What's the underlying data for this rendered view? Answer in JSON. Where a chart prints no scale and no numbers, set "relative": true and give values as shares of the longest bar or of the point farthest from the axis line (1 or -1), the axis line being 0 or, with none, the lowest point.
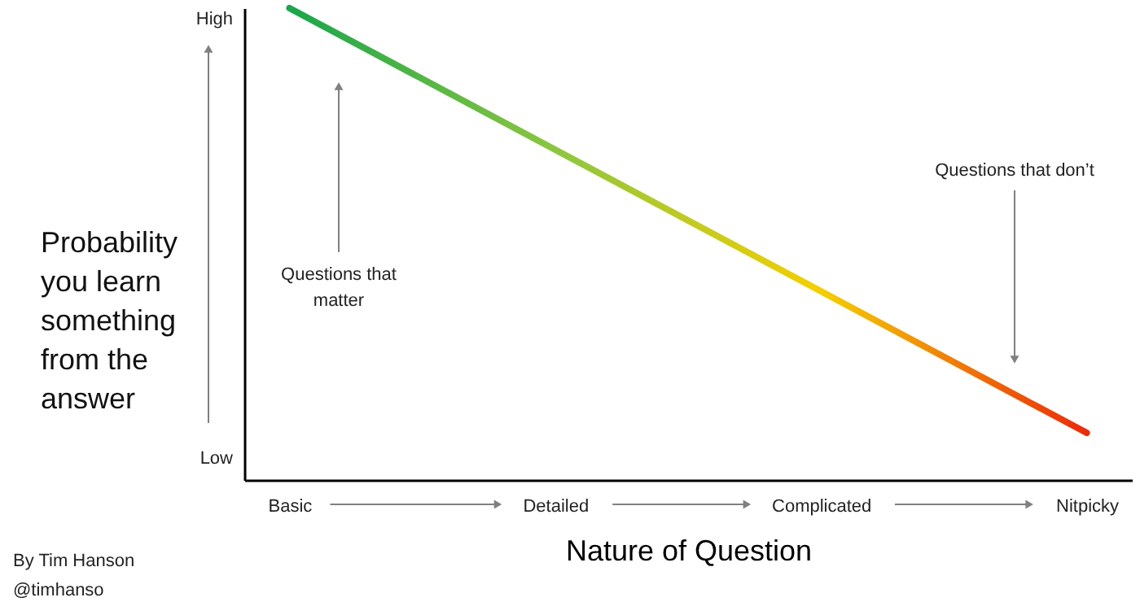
{
  "chart_data": {
    "type": "line",
    "relative": true,
    "xlabel": "Nature of Question",
    "ylabel": "Probability you learn something from the answer",
    "categories": [
      "Basic",
      "Detailed",
      "Complicated",
      "Nitpicky"
    ],
    "tick_labels": "x",
    "series": [
      {
        "values": [
          1,
          0.7,
          0.4,
          0.1
        ],
        "colors": [
          "#1aa64a",
          "#8cc63f",
          "#f5cf00",
          "#ec2a0a"
        ]
      }
    ],
    "annotations": [
      "Questions that matter",
      "Questions that don’t",
      "By Tim Hanson",
      "@timhanso",
      "High",
      "Low"
    ]
  }
}
